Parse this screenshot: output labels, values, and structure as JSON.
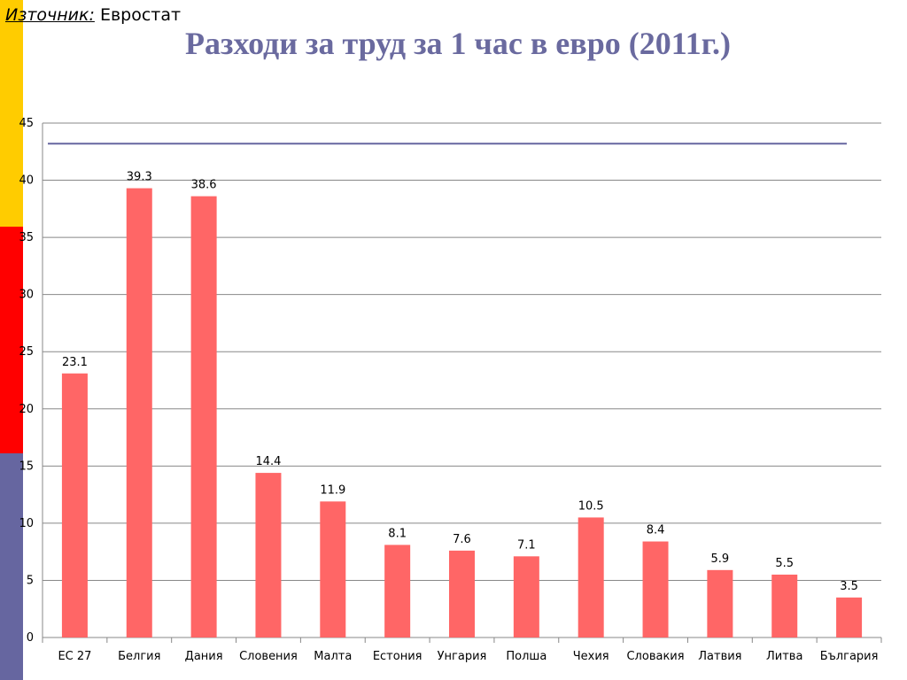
{
  "source": {
    "label": "Източник:",
    "value": "Евростат"
  },
  "title": "Разходи за труд за 1 час в евро (2011г.)",
  "colors": {
    "bar": "#ff6666",
    "grid": "#888888",
    "reference_line": "#6666a0",
    "sidebar": [
      "#ffcc00",
      "#ff0000",
      "#6666a0"
    ]
  },
  "chart_data": {
    "type": "bar",
    "categories": [
      "ЕС 27",
      "Белгия",
      "Дания",
      "Словения",
      "Малта",
      "Естония",
      "Унгария",
      "Полша",
      "Чехия",
      "Словакия",
      "Латвия",
      "Литва",
      "България"
    ],
    "values": [
      23.1,
      39.3,
      38.6,
      14.4,
      11.9,
      8.1,
      7.6,
      7.1,
      10.5,
      8.4,
      5.9,
      5.5,
      3.5
    ],
    "value_labels": [
      "23.1",
      "39.3",
      "38.6",
      "14.4",
      "11.9",
      "8.1",
      "7.6",
      "7.1",
      "10.5",
      "8.4",
      "5.9",
      "5.5",
      "3.5"
    ],
    "yticks": [
      "0",
      "5",
      "10",
      "15",
      "20",
      "25",
      "30",
      "35",
      "40",
      "45"
    ],
    "ylim": [
      0,
      45
    ],
    "reference_line_value": 43.2,
    "grid": true,
    "legend": "none"
  }
}
